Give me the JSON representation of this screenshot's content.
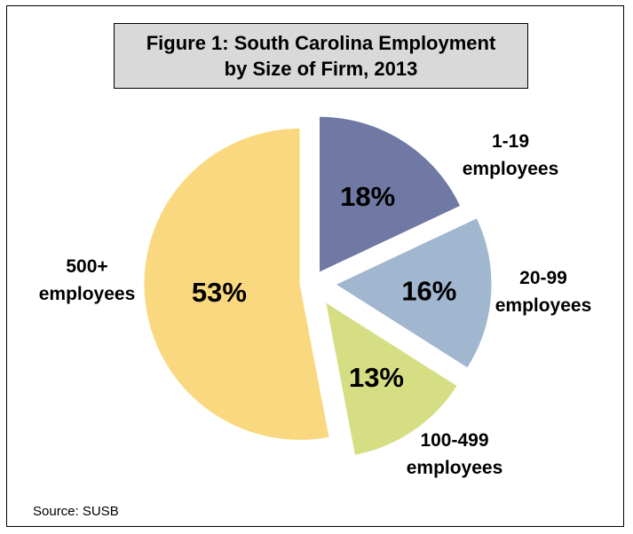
{
  "chart_data": {
    "type": "pie",
    "title": "Figure 1: South Carolina Employment by Size of Firm, 2013",
    "title_lines": [
      "Figure 1: South Carolina Employment",
      "by Size of Firm, 2013"
    ],
    "slices": [
      {
        "label_lines": [
          "1-19",
          "employees"
        ],
        "value": 18,
        "display": "18%",
        "color": "#6f79a3"
      },
      {
        "label_lines": [
          "20-99",
          "employees"
        ],
        "value": 16,
        "display": "16%",
        "color": "#a1b6cf"
      },
      {
        "label_lines": [
          "100-499",
          "employees"
        ],
        "value": 13,
        "display": "13%",
        "color": "#d6de84"
      },
      {
        "label_lines": [
          "500+",
          "employees"
        ],
        "value": 53,
        "display": "53%",
        "color": "#f9d87f"
      }
    ],
    "exploded": true,
    "legend": "none",
    "source": "Source: SUSB"
  }
}
